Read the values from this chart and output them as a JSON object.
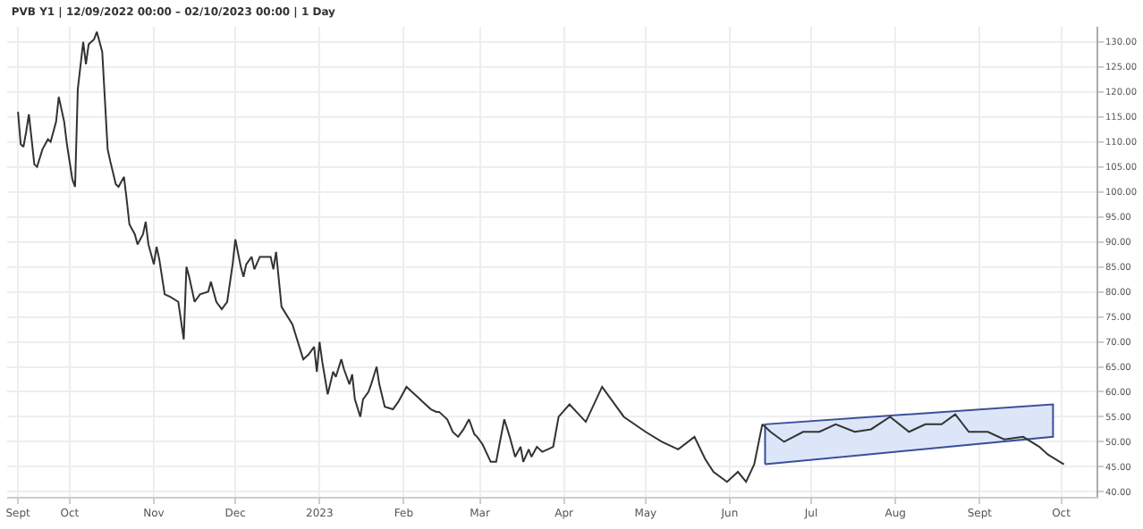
{
  "chart_data": {
    "type": "line",
    "title": "PVB Y1 | 12/09/2022 00:00 – 02/10/2023 00:00 | 1 Day",
    "x": [
      "2022-09-12",
      "2022-09-13",
      "2022-09-14",
      "2022-09-15",
      "2022-09-16",
      "2022-09-18",
      "2022-09-19",
      "2022-09-21",
      "2022-09-23",
      "2022-09-24",
      "2022-09-26",
      "2022-09-27",
      "2022-09-29",
      "2022-09-30",
      "2022-10-02",
      "2022-10-03",
      "2022-10-04",
      "2022-10-06",
      "2022-10-07",
      "2022-10-08",
      "2022-10-10",
      "2022-10-11",
      "2022-10-13",
      "2022-10-15",
      "2022-10-16",
      "2022-10-18",
      "2022-10-19",
      "2022-10-21",
      "2022-10-22",
      "2022-10-23",
      "2022-10-25",
      "2022-10-26",
      "2022-10-28",
      "2022-10-29",
      "2022-10-30",
      "2022-11-01",
      "2022-11-02",
      "2022-11-03",
      "2022-11-05",
      "2022-11-07",
      "2022-11-10",
      "2022-11-12",
      "2022-11-13",
      "2022-11-14",
      "2022-11-16",
      "2022-11-18",
      "2022-11-21",
      "2022-11-22",
      "2022-11-24",
      "2022-11-26",
      "2022-11-28",
      "2022-11-30",
      "2022-12-01",
      "2022-12-03",
      "2022-12-04",
      "2022-12-05",
      "2022-12-07",
      "2022-12-08",
      "2022-12-10",
      "2022-12-14",
      "2022-12-15",
      "2022-12-16",
      "2022-12-18",
      "2022-12-22",
      "2022-12-26",
      "2022-12-28",
      "2022-12-30",
      "2022-12-31",
      "2023-01-01",
      "2023-01-02",
      "2023-01-04",
      "2023-01-06",
      "2023-01-07",
      "2023-01-09",
      "2023-01-10",
      "2023-01-12",
      "2023-01-13",
      "2023-01-14",
      "2023-01-16",
      "2023-01-17",
      "2023-01-19",
      "2023-01-20",
      "2023-01-22",
      "2023-01-23",
      "2023-01-25",
      "2023-01-28",
      "2023-01-30",
      "2023-02-02",
      "2023-02-04",
      "2023-02-06",
      "2023-02-08",
      "2023-02-11",
      "2023-02-13",
      "2023-02-14",
      "2023-02-17",
      "2023-02-19",
      "2023-02-21",
      "2023-02-23",
      "2023-02-25",
      "2023-02-27",
      "2023-02-28",
      "2023-03-02",
      "2023-03-05",
      "2023-03-07",
      "2023-03-10",
      "2023-03-12",
      "2023-03-14",
      "2023-03-16",
      "2023-03-17",
      "2023-03-19",
      "2023-03-20",
      "2023-03-22",
      "2023-03-24",
      "2023-03-26",
      "2023-03-28",
      "2023-03-30",
      "2023-04-03",
      "2023-04-09",
      "2023-04-15",
      "2023-04-23",
      "2023-05-01",
      "2023-05-07",
      "2023-05-13",
      "2023-05-19",
      "2023-05-23",
      "2023-05-26",
      "2023-05-31",
      "2023-06-04",
      "2023-06-07",
      "2023-06-10",
      "2023-06-13",
      "2023-06-16",
      "2023-06-21",
      "2023-06-28",
      "2023-07-04",
      "2023-07-10",
      "2023-07-17",
      "2023-07-23",
      "2023-07-30",
      "2023-08-06",
      "2023-08-12",
      "2023-08-18",
      "2023-08-23",
      "2023-08-28",
      "2023-09-04",
      "2023-09-10",
      "2023-09-17",
      "2023-09-23",
      "2023-09-26",
      "2023-10-02"
    ],
    "series": [
      {
        "color": "#333333",
        "values": [
          116,
          109.5,
          109,
          112,
          115.5,
          105.5,
          105,
          108.5,
          110.5,
          110,
          114,
          119,
          114,
          109.5,
          102.5,
          101,
          120.5,
          130,
          125.5,
          129.5,
          130.5,
          132,
          128,
          108.5,
          106,
          101.5,
          101,
          103,
          98.5,
          93.5,
          91.5,
          89.5,
          91.5,
          94,
          89.5,
          85.5,
          89,
          86.5,
          79.5,
          79,
          78,
          70.5,
          85,
          83,
          78,
          79.5,
          80,
          82,
          78,
          76.5,
          78,
          85.5,
          90.5,
          85,
          83,
          85.5,
          87,
          84.5,
          87,
          87,
          84.5,
          88,
          77,
          73.5,
          66.5,
          67.5,
          69,
          64,
          70,
          66,
          59.5,
          64,
          63,
          66.5,
          64.5,
          61.5,
          63.5,
          58.5,
          55,
          58.5,
          60,
          61.5,
          65,
          61.5,
          57,
          56.5,
          58,
          61,
          60,
          59,
          58,
          56.5,
          56,
          56,
          54.5,
          52,
          51,
          52.5,
          54.5,
          51.5,
          51,
          49.5,
          46,
          46,
          54.5,
          51,
          47,
          49,
          46,
          48.5,
          47,
          49,
          48,
          48.5,
          49,
          55,
          57.5,
          54,
          61,
          55,
          52,
          50,
          48.5,
          51,
          46.5,
          44,
          42,
          44,
          42,
          45.5,
          53.5,
          52,
          50,
          52,
          52,
          53.5,
          52,
          52.5,
          55,
          52,
          53.5,
          53.5,
          55.5,
          52,
          52,
          50.5,
          51,
          49,
          47.5,
          45.5
        ]
      },
      {
        "type": "area",
        "color": "#dce6f8",
        "x": [
          "2023-06-14",
          "2023-09-28"
        ],
        "values": [
          null,
          null
        ],
        "lower": [
          45.5,
          51
        ],
        "upper": [
          53.5,
          57.5
        ]
      }
    ],
    "xlim": [
      "2022-09-08",
      "2023-10-14"
    ],
    "xticks": [
      {
        "value": "2022-09-12",
        "label": "Sept"
      },
      {
        "value": "2022-10-01",
        "label": "Oct"
      },
      {
        "value": "2022-11-01",
        "label": "Nov"
      },
      {
        "value": "2022-12-01",
        "label": "Dec"
      },
      {
        "value": "2023-01-01",
        "label": "2023"
      },
      {
        "value": "2023-02-01",
        "label": "Feb"
      },
      {
        "value": "2023-03-01",
        "label": "Mar"
      },
      {
        "value": "2023-04-01",
        "label": "Apr"
      },
      {
        "value": "2023-05-01",
        "label": "May"
      },
      {
        "value": "2023-06-01",
        "label": "Jun"
      },
      {
        "value": "2023-07-01",
        "label": "Jul"
      },
      {
        "value": "2023-08-01",
        "label": "Aug"
      },
      {
        "value": "2023-09-01",
        "label": "Sept"
      },
      {
        "value": "2023-10-01",
        "label": "Oct"
      }
    ],
    "ylim": [
      39,
      133
    ],
    "yticks": [
      {
        "value": 40,
        "label": "40.00"
      },
      {
        "value": 45,
        "label": "45.00"
      },
      {
        "value": 50,
        "label": "50.00"
      },
      {
        "value": 55,
        "label": "55.00"
      },
      {
        "value": 60,
        "label": "60.00"
      },
      {
        "value": 65,
        "label": "65.00"
      },
      {
        "value": 70,
        "label": "70.00"
      },
      {
        "value": 75,
        "label": "75.00"
      },
      {
        "value": 80,
        "label": "80.00"
      },
      {
        "value": 85,
        "label": "85.00"
      },
      {
        "value": 90,
        "label": "90.00"
      },
      {
        "value": 95,
        "label": "95.00"
      },
      {
        "value": 100,
        "label": "100.00"
      },
      {
        "value": 105,
        "label": "105.00"
      },
      {
        "value": 110,
        "label": "110.00"
      },
      {
        "value": 115,
        "label": "115.00"
      },
      {
        "value": 120,
        "label": "120.00"
      },
      {
        "value": 125,
        "label": "125.00"
      },
      {
        "value": 130,
        "label": "130.00"
      }
    ],
    "grid": true,
    "marker": "none",
    "line_style": "solid"
  }
}
